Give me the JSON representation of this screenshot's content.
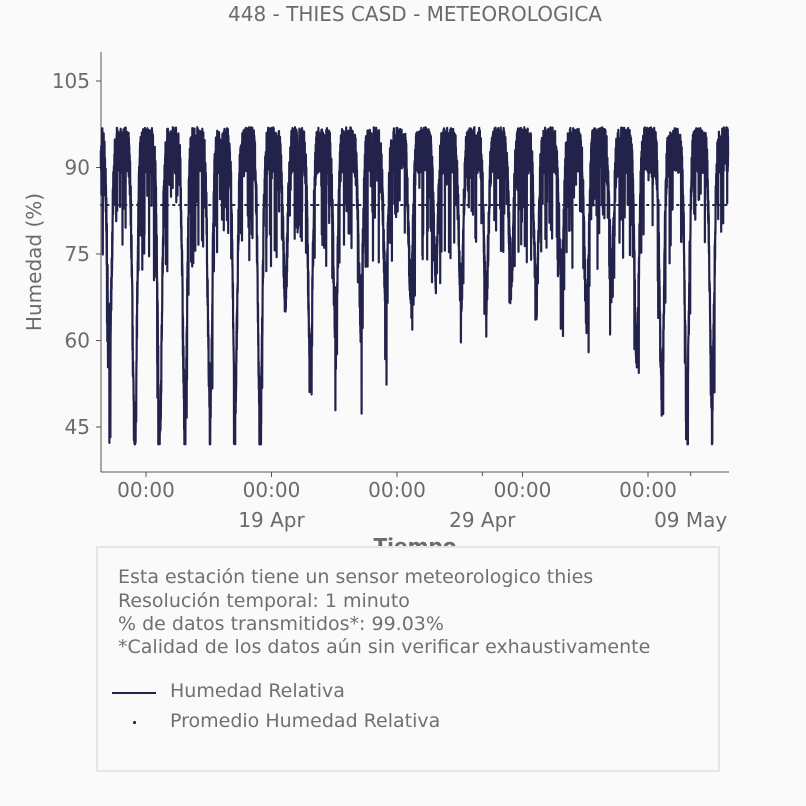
{
  "chart_data": {
    "type": "line",
    "title": "448 - THIES CASD - METEOROLOGICA",
    "xlabel": "Tiempo",
    "ylabel": "Humedad (%)",
    "ylim": [
      37,
      110
    ],
    "yticks": [
      45,
      60,
      75,
      90,
      105
    ],
    "xticks_time": [
      "00:00",
      "00:00",
      "00:00",
      "00:00",
      "00:00"
    ],
    "xticks_date": [
      "19 Apr",
      "29 Apr",
      "09 May"
    ],
    "grid": false,
    "colors": {
      "series": "#22224a"
    },
    "series": [
      {
        "name": "Humedad Relativa",
        "style": "solid",
        "x_unit": "days",
        "x_range": [
          -1.8,
          23.2
        ],
        "daily_minima": [
          60,
          42,
          45,
          47,
          48,
          50,
          45,
          68,
          55,
          62,
          65,
          68,
          68,
          72,
          68,
          67,
          71,
          68,
          70,
          65,
          72,
          58,
          50
        ],
        "values_min": 42,
        "values_max": 100
      },
      {
        "name": "Promedio Humedad Relativa",
        "style": "dotted",
        "value": 83.5
      }
    ]
  },
  "info": {
    "line1": "Esta estación tiene un sensor meteorologico thies",
    "line2": "Resolución temporal: 1 minuto",
    "line3": "% de datos transmitidos*: 99.03%",
    "line4": "*Calidad de los datos aún sin verificar exhaustivamente"
  }
}
